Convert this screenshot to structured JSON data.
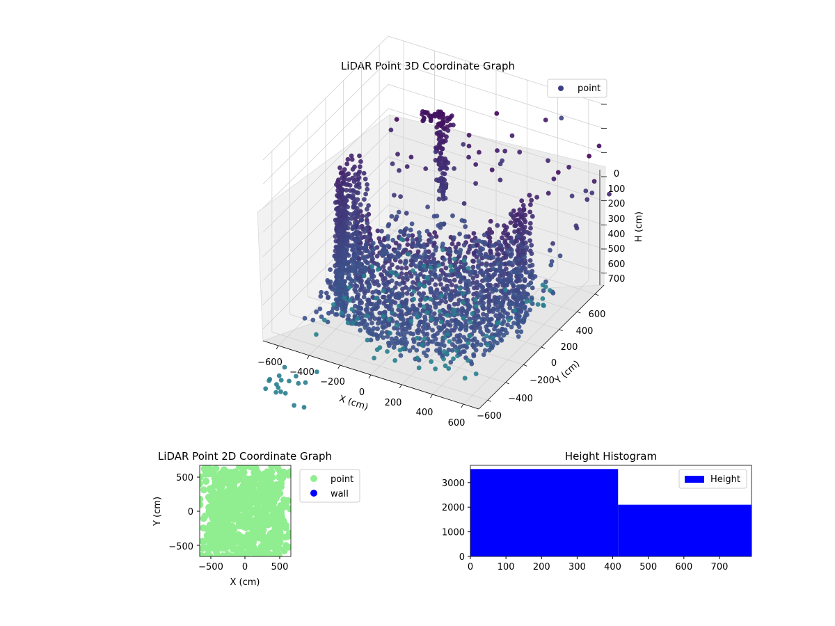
{
  "chart_data": [
    {
      "type": "scatter",
      "projection": "3d",
      "title": "LiDAR Point 3D Coordinate Graph",
      "xlabel": "X (cm)",
      "ylabel": "Y (cm)",
      "zlabel": "H (cm)",
      "xlim": [
        -700,
        700
      ],
      "ylim": [
        -700,
        700
      ],
      "zlim": [
        750,
        0
      ],
      "z_axis_inverted": true,
      "xticks": [
        "−600",
        "−400",
        "−200",
        "0",
        "200",
        "400",
        "600"
      ],
      "yticks": [
        "−600",
        "−400",
        "−200",
        "0",
        "200",
        "400",
        "600"
      ],
      "zticks": [
        "0",
        "100",
        "200",
        "300",
        "400",
        "500",
        "600",
        "700"
      ],
      "colormap": "viridis",
      "grid": true,
      "legend": {
        "placement": "top-right",
        "entries": [
          {
            "name": "point",
            "color": "#3b3f85"
          }
        ]
      },
      "series": [
        {
          "name": "point",
          "shape": "bowl-shaped wall of points (approx.)",
          "x": [
            -520,
            -440,
            -360,
            -280,
            -200,
            -120,
            -40,
            40,
            120,
            200,
            280,
            360,
            440,
            520,
            560,
            600
          ],
          "y": [
            420,
            300,
            180,
            60,
            -40,
            -120,
            -180,
            -210,
            -200,
            -160,
            -80,
            0,
            120,
            260,
            380,
            480
          ],
          "z": [
            250,
            330,
            400,
            440,
            460,
            470,
            475,
            470,
            460,
            440,
            400,
            350,
            300,
            260,
            220,
            200
          ],
          "z_range_per_column": [
            0,
            750
          ]
        }
      ]
    },
    {
      "type": "scatter",
      "title": "LiDAR Point 2D Coordinate Graph",
      "xlabel": "X (cm)",
      "ylabel": "Y (cm)",
      "xlim": [
        -650,
        650
      ],
      "ylim": [
        -650,
        650
      ],
      "xticks": [
        "−500",
        "0",
        "500"
      ],
      "yticks": [
        "−500",
        "0",
        "500"
      ],
      "grid": false,
      "legend": {
        "placement": "outside-right",
        "entries": [
          {
            "name": "point",
            "color": "#90ee90"
          },
          {
            "name": "wall",
            "color": "#0000ff"
          }
        ]
      },
      "series": [
        {
          "name": "point",
          "note": "dense cloud covering most of the plot area (approx.)"
        },
        {
          "name": "wall",
          "note": "not visible (hidden behind points)"
        }
      ]
    },
    {
      "type": "bar",
      "subtype": "histogram",
      "title": "Height Histogram",
      "xlabel": "",
      "ylabel": "",
      "xlim": [
        0,
        790
      ],
      "ylim": [
        0,
        3700
      ],
      "xticks": [
        "0",
        "100",
        "200",
        "300",
        "400",
        "500",
        "600",
        "700"
      ],
      "yticks": [
        "0",
        "1000",
        "2000",
        "3000"
      ],
      "grid": false,
      "legend": {
        "placement": "top-right",
        "entries": [
          {
            "name": "Height",
            "color": "#0000ff"
          }
        ]
      },
      "bins": [
        {
          "start": 0,
          "end": 415,
          "count": 3550
        },
        {
          "start": 415,
          "end": 790,
          "count": 2100
        }
      ],
      "bar_color": "#0000ff"
    }
  ]
}
